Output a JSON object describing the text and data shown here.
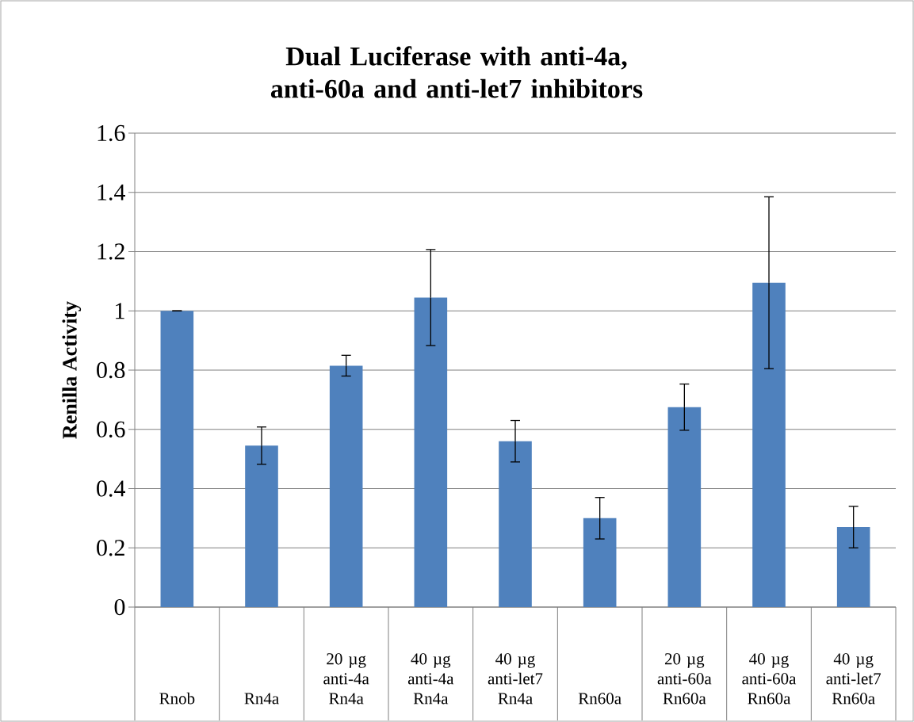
{
  "chart_data": {
    "type": "bar",
    "title": "Dual Luciferase with anti-4a, anti-60a and anti-let7 inhibitors",
    "ylabel": "Renilla Activity",
    "categories": [
      "Rnob",
      "Rn4a",
      "20 µg anti-4a Rn4a",
      "40 µg anti-4a Rn4a",
      "40 µg anti-let7 Rn4a",
      "Rn60a",
      "20 µg anti-60a Rn60a",
      "40 µg anti-60a Rn60a",
      "40 µg anti-let7 Rn60a"
    ],
    "values": [
      1.0,
      0.545,
      0.815,
      1.045,
      0.56,
      0.3,
      0.675,
      1.095,
      0.27
    ],
    "errors": [
      0,
      0.063,
      0.035,
      0.162,
      0.07,
      0.07,
      0.078,
      0.29,
      0.07
    ],
    "color": "#4f81bd",
    "ylim": [
      0,
      1.6
    ],
    "yticks": [
      0,
      0.2,
      0.4,
      0.6,
      0.8,
      1,
      1.2,
      1.4,
      1.6
    ],
    "grid": "y"
  }
}
